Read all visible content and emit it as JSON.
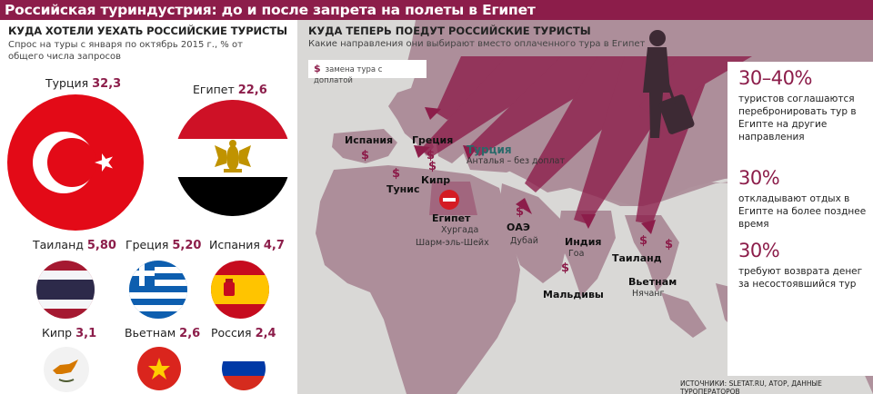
{
  "title": "Российская туриндустрия: до и после запрета на полеты в Египет",
  "left": {
    "heading": "КУДА ХОТЕЛИ УЕХАТЬ РОССИЙСКИЕ ТУРИСТЫ",
    "subheading": "Спрос на туры с января по октябрь 2015 г., % от общего числа запросов",
    "countries": [
      {
        "name": "Турция",
        "value": "32,3",
        "flag": "turkey"
      },
      {
        "name": "Египет",
        "value": "22,6",
        "flag": "egypt"
      },
      {
        "name": "Таиланд",
        "value": "5,80",
        "flag": "thailand"
      },
      {
        "name": "Греция",
        "value": "5,20",
        "flag": "greece"
      },
      {
        "name": "Испания",
        "value": "4,7",
        "flag": "spain"
      },
      {
        "name": "Кипр",
        "value": "3,1",
        "flag": "cyprus"
      },
      {
        "name": "Вьетнам",
        "value": "2,6",
        "flag": "vietnam"
      },
      {
        "name": "Россия",
        "value": "2,4",
        "flag": "russia"
      }
    ]
  },
  "map": {
    "heading": "КУДА ТЕПЕРЬ ПОЕДУТ РОССИЙСКИЕ ТУРИСТЫ",
    "subheading": "Какие направления они выбирают вместо оплаченного тура в Египет",
    "legend_symbol": "$",
    "legend_label": "замена тура с доплатой",
    "labels": {
      "spain": "Испания",
      "greece": "Греция",
      "turkey": "Турция",
      "turkey_sub": "Анталья – без доплат",
      "tunisia": "Тунис",
      "cyprus": "Кипр",
      "egypt": "Египет",
      "egypt_sub1": "Хургада",
      "egypt_sub2": "Шарм-эль-Шейх",
      "uae": "ОАЭ",
      "uae_sub": "Дубай",
      "india": "Индия",
      "india_sub": "Гоа",
      "maldives": "Мальдивы",
      "thailand": "Таиланд",
      "vietnam": "Вьетнам",
      "vietnam_sub": "Нячанг"
    }
  },
  "stats": [
    {
      "pct": "30–40%",
      "text": "туристов соглашаются перебронировать тур в Египте на другие направления"
    },
    {
      "pct": "30%",
      "text": "откладывают отдых в Египте на более позднее время"
    },
    {
      "pct": "30%",
      "text": "требуют возврата денег за несостоявшийся тур"
    }
  ],
  "source": "ИСТОЧНИКИ: SLETAT.RU, АТОР, ДАННЫЕ ТУРОПЕРАТОРОВ",
  "colors": {
    "accent": "#8c1d4a",
    "map_land": "#ad8e9a",
    "map_water": "#d9d8d6"
  }
}
